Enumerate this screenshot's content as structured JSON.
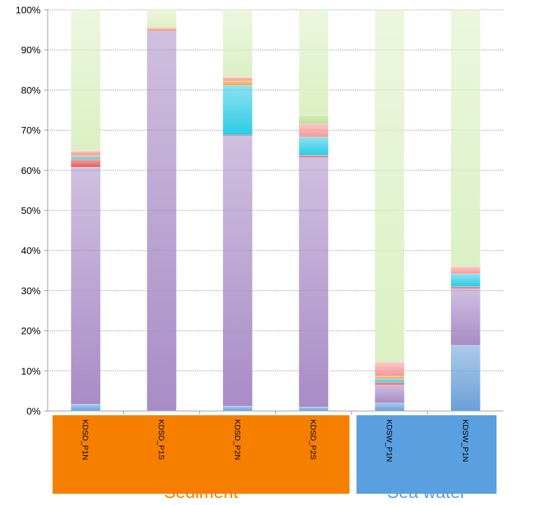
{
  "chart_data": {
    "type": "bar",
    "stacked": true,
    "percent": true,
    "title": "",
    "xlabel": "",
    "ylabel": "",
    "ylim": [
      0,
      100
    ],
    "yticks": [
      "0%",
      "10%",
      "20%",
      "30%",
      "40%",
      "50%",
      "60%",
      "70%",
      "80%",
      "90%",
      "100%"
    ],
    "grid": true,
    "categories": [
      "KDSD_P1N",
      "KDSD_P1S",
      "KDSD_P2N",
      "KDSD_P2S",
      "KDSW_P1N",
      "KDSW_P1N"
    ],
    "groups": [
      {
        "label": "Sediment",
        "members": [
          0,
          1,
          2,
          3
        ],
        "color": "#f77f00"
      },
      {
        "label": "Sea water",
        "members": [
          4,
          5
        ],
        "color": "#5a9fe0"
      }
    ],
    "series": [
      {
        "name": "blue",
        "color": "#6a9fd8",
        "values": [
          1.7,
          0,
          1.2,
          1.0,
          2.0,
          16.4
        ]
      },
      {
        "name": "purple",
        "color": "#a88cc6",
        "values": [
          59.1,
          94.8,
          67.3,
          62.2,
          4.5,
          14.1
        ]
      },
      {
        "name": "red",
        "color": "#e85a5a",
        "values": [
          2.0,
          0.3,
          0.3,
          0.5,
          0.7,
          0.5
        ]
      },
      {
        "name": "cyan",
        "color": "#2ccbe6",
        "values": [
          0.6,
          0,
          12.4,
          4.6,
          0.8,
          3.2
        ]
      },
      {
        "name": "orange",
        "color": "#f8a040",
        "values": [
          0.4,
          0.3,
          1.1,
          0,
          0.7,
          0
        ]
      },
      {
        "name": "pink",
        "color": "#f49a9a",
        "values": [
          1.0,
          0.2,
          0.9,
          3.3,
          3.5,
          1.8
        ]
      },
      {
        "name": "lightgreen",
        "color": "#b8e090",
        "values": [
          0,
          0,
          0,
          2.2,
          0,
          0
        ]
      },
      {
        "name": "green",
        "color": "#dcf0c4",
        "values": [
          35.2,
          4.4,
          16.8,
          26.2,
          87.8,
          64.0
        ]
      }
    ]
  }
}
